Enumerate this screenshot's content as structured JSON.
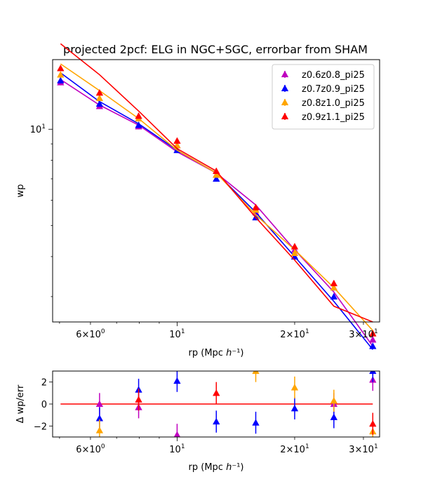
{
  "chart_data": [
    {
      "type": "scatter",
      "title": "projected 2pcf: ELG in NGC+SGC, errorbar from SHAM",
      "xlabel": "rp (Mpc h⁻¹)",
      "ylabel": "wp",
      "xscale": "log",
      "yscale": "log",
      "xlim": [
        4.8,
        33
      ],
      "ylim": [
        2.5,
        16.5
      ],
      "x_tick_labels": [
        {
          "value": 6,
          "base": "6×10",
          "exp": "0"
        },
        {
          "value": 10,
          "base": "10",
          "exp": "1"
        },
        {
          "value": 20,
          "base": "2×10",
          "exp": "1"
        },
        {
          "value": 30,
          "base": "3×10",
          "exp": "1"
        }
      ],
      "y_tick_labels": [
        {
          "value": 10,
          "base": "10",
          "exp": "1"
        }
      ],
      "legend_position": "upper-right",
      "x": [
        5.03,
        6.33,
        7.97,
        10.0,
        12.6,
        15.9,
        20.0,
        25.2,
        31.7
      ],
      "series": [
        {
          "name": "z0.6z0.8_pi25",
          "color": "#bf00bf",
          "points": [
            14.0,
            11.8,
            10.2,
            8.9,
            7.2,
            5.5,
            4.2,
            3.2,
            2.2
          ],
          "model": [
            14.3,
            11.9,
            10.3,
            8.5,
            7.3,
            5.8,
            4.2,
            3.1,
            2.1
          ]
        },
        {
          "name": "z0.7z0.9_pi25",
          "color": "#0000ff",
          "points": [
            14.2,
            12.0,
            10.3,
            8.6,
            7.0,
            5.3,
            4.0,
            3.0,
            2.1
          ],
          "model": [
            15.0,
            12.2,
            10.4,
            8.6,
            7.3,
            5.5,
            4.0,
            2.9,
            2.05
          ]
        },
        {
          "name": "z0.8z1.0_pi25",
          "color": "#ffa500",
          "points": [
            14.8,
            12.5,
            10.8,
            8.9,
            7.2,
            5.6,
            4.1,
            3.2,
            2.3
          ],
          "model": [
            16.0,
            13.2,
            10.8,
            8.6,
            7.3,
            5.4,
            4.2,
            3.2,
            2.35
          ]
        },
        {
          "name": "z0.9z1.1_pi25",
          "color": "#ff0000",
          "points": [
            15.5,
            13.0,
            11.0,
            9.2,
            7.4,
            5.7,
            4.3,
            3.3,
            2.3
          ],
          "model": [
            18.5,
            14.8,
            11.4,
            8.7,
            7.4,
            5.3,
            3.9,
            2.8,
            2.5
          ]
        }
      ]
    },
    {
      "type": "scatter",
      "xlabel": "rp (Mpc h⁻¹)",
      "ylabel": "Δ wp/err",
      "xscale": "log",
      "xlim": [
        4.8,
        33
      ],
      "ylim": [
        -3,
        3
      ],
      "y_ticks": [
        -2,
        0,
        2
      ],
      "x_tick_labels": [
        {
          "value": 6,
          "base": "6×10",
          "exp": "0"
        },
        {
          "value": 10,
          "base": "10",
          "exp": "1"
        },
        {
          "value": 20,
          "base": "2×10",
          "exp": "1"
        },
        {
          "value": 30,
          "base": "3×10",
          "exp": "1"
        }
      ],
      "reference_line": {
        "y": 0,
        "x_start": 5.03,
        "x_end": 31.7,
        "color": "#ff0000"
      },
      "x": [
        6.33,
        7.97,
        10.0,
        12.6,
        15.9,
        20.0,
        25.2,
        31.7
      ],
      "series": [
        {
          "name": "z0.6z0.8_pi25",
          "color": "#bf00bf",
          "values": [
            0.0,
            -0.3,
            -2.8,
            null,
            null,
            null,
            0.0,
            2.2
          ],
          "err": 1.0
        },
        {
          "name": "z0.7z0.9_pi25",
          "color": "#0000ff",
          "values": [
            -1.3,
            1.3,
            2.1,
            -1.6,
            -1.7,
            -0.4,
            -1.2,
            3.0
          ],
          "err": 1.0
        },
        {
          "name": "z0.8z1.0_pi25",
          "color": "#ffa500",
          "values": [
            -2.4,
            null,
            null,
            null,
            3.0,
            1.5,
            0.3,
            -2.5
          ],
          "err": 1.0
        },
        {
          "name": "z0.9z1.1_pi25",
          "color": "#ff0000",
          "values": [
            null,
            0.4,
            null,
            1.0,
            null,
            null,
            null,
            -1.8
          ],
          "err": 1.0
        }
      ]
    }
  ]
}
